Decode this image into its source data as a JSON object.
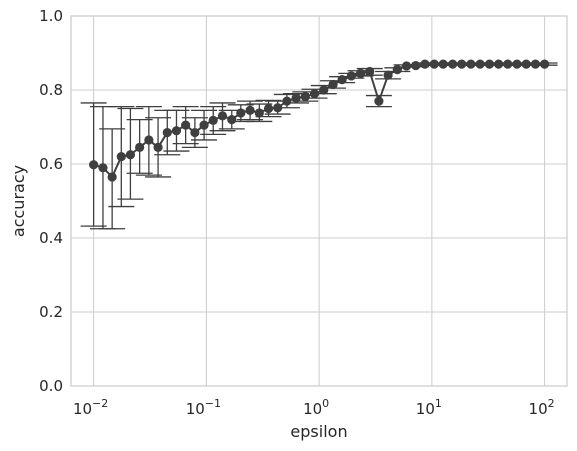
{
  "chart_data": {
    "type": "line",
    "xlabel": "epsilon",
    "ylabel": "accuracy",
    "x_scale": "log",
    "xlim": [
      0.0063,
      158
    ],
    "ylim": [
      0.0,
      1.0
    ],
    "grid": true,
    "x_ticks": [
      {
        "value": 0.01,
        "base": "10",
        "exp": "−2"
      },
      {
        "value": 0.1,
        "base": "10",
        "exp": "−1"
      },
      {
        "value": 1,
        "base": "10",
        "exp": "0"
      },
      {
        "value": 10,
        "base": "10",
        "exp": "1"
      },
      {
        "value": 100,
        "base": "10",
        "exp": "2"
      }
    ],
    "y_ticks": [
      {
        "value": 0.0,
        "label": "0.0"
      },
      {
        "value": 0.2,
        "label": "0.2"
      },
      {
        "value": 0.4,
        "label": "0.4"
      },
      {
        "value": 0.6,
        "label": "0.6"
      },
      {
        "value": 0.8,
        "label": "0.8"
      },
      {
        "value": 1.0,
        "label": "1.0"
      }
    ],
    "color": "#3f3f3f",
    "series": [
      {
        "x": [
          0.01,
          0.0121,
          0.0146,
          0.0176,
          0.0212,
          0.0256,
          0.0309,
          0.0373,
          0.045,
          0.0543,
          0.0655,
          0.0791,
          0.0954,
          0.115,
          0.139,
          0.168,
          0.202,
          0.244,
          0.295,
          0.356,
          0.429,
          0.518,
          0.625,
          0.754,
          0.91,
          1.1,
          1.33,
          1.6,
          1.93,
          2.33,
          2.81,
          3.39,
          4.09,
          4.94,
          5.96,
          7.2,
          8.68,
          10.5,
          12.6,
          15.3,
          18.4,
          22.2,
          26.8,
          32.4,
          39.1,
          47.1,
          56.9,
          68.7,
          82.9,
          100.0
        ],
        "y": [
          0.598,
          0.59,
          0.565,
          0.62,
          0.625,
          0.645,
          0.665,
          0.645,
          0.685,
          0.69,
          0.705,
          0.685,
          0.705,
          0.718,
          0.73,
          0.72,
          0.738,
          0.745,
          0.738,
          0.75,
          0.752,
          0.77,
          0.778,
          0.782,
          0.79,
          0.8,
          0.815,
          0.828,
          0.838,
          0.845,
          0.85,
          0.77,
          0.84,
          0.855,
          0.865,
          0.866,
          0.87,
          0.87,
          0.87,
          0.87,
          0.87,
          0.87,
          0.87,
          0.87,
          0.87,
          0.87,
          0.87,
          0.87,
          0.87,
          0.87
        ],
        "err_low": [
          0.432,
          0.425,
          0.425,
          0.485,
          0.505,
          0.575,
          0.57,
          0.565,
          0.625,
          0.635,
          0.655,
          0.645,
          0.665,
          0.68,
          0.69,
          0.695,
          0.715,
          0.72,
          0.715,
          0.728,
          0.735,
          0.752,
          0.765,
          0.77,
          0.778,
          0.79,
          0.805,
          0.82,
          0.832,
          0.838,
          0.84,
          0.755,
          0.83,
          0.85,
          0.862,
          0.863,
          0.867,
          0.867,
          0.867,
          0.867,
          0.867,
          0.867,
          0.867,
          0.867,
          0.867,
          0.867,
          0.867,
          0.867,
          0.867,
          0.867
        ],
        "err_high": [
          0.765,
          0.755,
          0.695,
          0.755,
          0.75,
          0.72,
          0.755,
          0.725,
          0.745,
          0.745,
          0.755,
          0.725,
          0.745,
          0.755,
          0.765,
          0.745,
          0.76,
          0.77,
          0.762,
          0.772,
          0.77,
          0.788,
          0.79,
          0.795,
          0.802,
          0.812,
          0.825,
          0.836,
          0.845,
          0.852,
          0.858,
          0.785,
          0.85,
          0.86,
          0.868,
          0.869,
          0.873,
          0.873,
          0.873,
          0.873,
          0.873,
          0.873,
          0.873,
          0.873,
          0.873,
          0.873,
          0.873,
          0.873,
          0.873,
          0.873
        ]
      }
    ]
  }
}
